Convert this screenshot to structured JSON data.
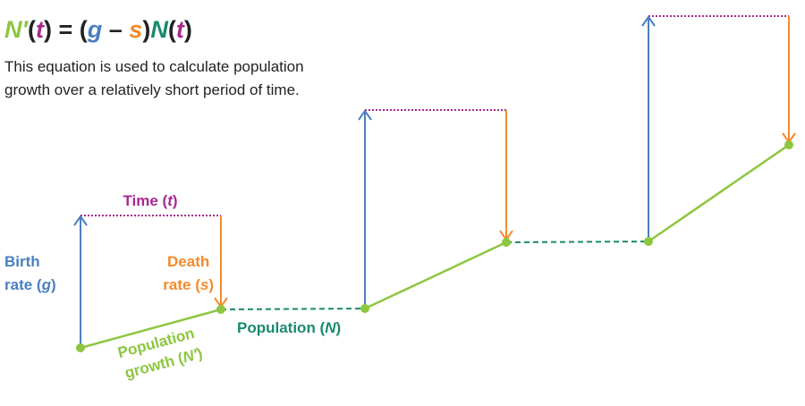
{
  "equation": {
    "parts": [
      "N′",
      "(",
      "t",
      ") = (",
      "g",
      " – ",
      "s",
      ")",
      "N",
      "(",
      "t",
      ")"
    ]
  },
  "description": [
    "This equation is used to calculate population",
    "growth over a relatively short period of time."
  ],
  "labels": {
    "time": [
      "Time (",
      "t",
      ")"
    ],
    "birth": [
      "Birth",
      "rate (",
      "g",
      ")"
    ],
    "death": [
      "Death",
      "rate (",
      "s",
      ")"
    ],
    "population": [
      "Population (",
      "N",
      ")"
    ],
    "growth": [
      "Population",
      "growth (",
      "N′",
      ")"
    ]
  }
}
